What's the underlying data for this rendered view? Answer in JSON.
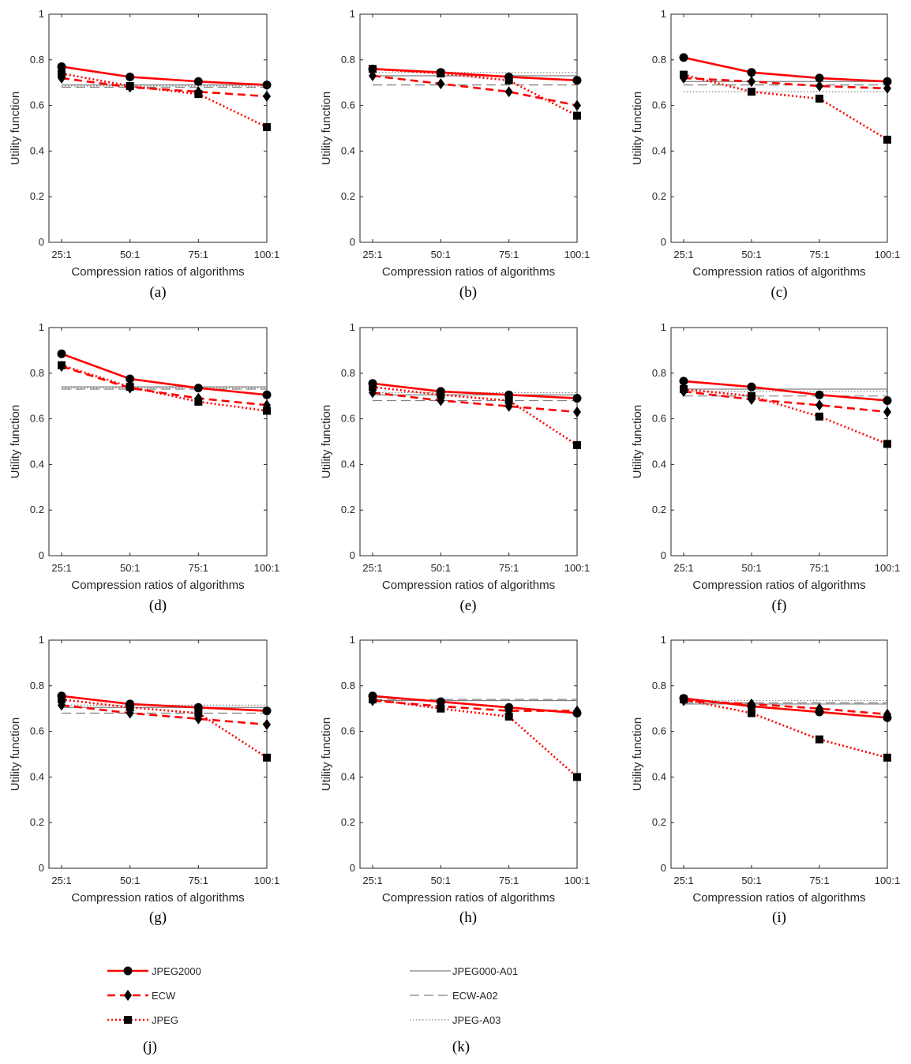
{
  "figure": {
    "categories": [
      "25:1",
      "50:1",
      "75:1",
      "100:1"
    ],
    "xlabel": "Compression ratios of algorithms",
    "ylabel": "Utility function",
    "yticks": [
      "0",
      "0.2",
      "0.4",
      "0.6",
      "0.8",
      "1"
    ]
  },
  "series_styles": [
    {
      "key": "JPEG2000",
      "color": "#ff0000",
      "marker": "circle",
      "dash": "solid"
    },
    {
      "key": "ECW",
      "color": "#ff0000",
      "marker": "diamond",
      "dash": "dashed"
    },
    {
      "key": "JPEG",
      "color": "#ff0000",
      "marker": "square",
      "dash": "dotted"
    },
    {
      "key": "JPEG000-A01",
      "color": "#808080",
      "dash": "solid"
    },
    {
      "key": "ECW-A02",
      "color": "#808080",
      "dash": "dashed"
    },
    {
      "key": "JPEG-A03",
      "color": "#808080",
      "dash": "dotted"
    }
  ],
  "chart_data": [
    {
      "type": "line",
      "label": "(a)",
      "ylim": [
        0,
        1
      ],
      "series": [
        {
          "name": "JPEG2000",
          "values": [
            0.77,
            0.725,
            0.705,
            0.69
          ]
        },
        {
          "name": "ECW",
          "values": [
            0.72,
            0.68,
            0.66,
            0.64
          ]
        },
        {
          "name": "JPEG",
          "values": [
            0.74,
            0.685,
            0.65,
            0.505
          ]
        },
        {
          "name": "JPEG000-A01",
          "values": [
            0.69,
            0.69,
            0.69,
            0.69
          ]
        },
        {
          "name": "ECW-A02",
          "values": [
            0.68,
            0.68,
            0.68,
            0.68
          ]
        },
        {
          "name": "JPEG-A03",
          "values": [
            0.685,
            0.685,
            0.685,
            0.685
          ]
        }
      ]
    },
    {
      "type": "line",
      "label": "(b)",
      "ylim": [
        0,
        1
      ],
      "series": [
        {
          "name": "JPEG2000",
          "values": [
            0.76,
            0.745,
            0.725,
            0.71
          ]
        },
        {
          "name": "ECW",
          "values": [
            0.73,
            0.695,
            0.66,
            0.6
          ]
        },
        {
          "name": "JPEG",
          "values": [
            0.76,
            0.74,
            0.71,
            0.555
          ]
        },
        {
          "name": "JPEG000-A01",
          "values": [
            0.73,
            0.73,
            0.73,
            0.73
          ]
        },
        {
          "name": "ECW-A02",
          "values": [
            0.69,
            0.69,
            0.69,
            0.69
          ]
        },
        {
          "name": "JPEG-A03",
          "values": [
            0.745,
            0.745,
            0.745,
            0.745
          ]
        }
      ]
    },
    {
      "type": "line",
      "label": "(c)",
      "ylim": [
        0,
        1
      ],
      "series": [
        {
          "name": "JPEG2000",
          "values": [
            0.81,
            0.745,
            0.72,
            0.705
          ]
        },
        {
          "name": "ECW",
          "values": [
            0.72,
            0.705,
            0.685,
            0.675
          ]
        },
        {
          "name": "JPEG",
          "values": [
            0.735,
            0.66,
            0.63,
            0.45
          ]
        },
        {
          "name": "JPEG000-A01",
          "values": [
            0.705,
            0.705,
            0.705,
            0.705
          ]
        },
        {
          "name": "ECW-A02",
          "values": [
            0.69,
            0.69,
            0.69,
            0.69
          ]
        },
        {
          "name": "JPEG-A03",
          "values": [
            0.66,
            0.66,
            0.66,
            0.66
          ]
        }
      ]
    },
    {
      "type": "line",
      "label": "(d)",
      "ylim": [
        0,
        1
      ],
      "series": [
        {
          "name": "JPEG2000",
          "values": [
            0.885,
            0.775,
            0.735,
            0.705
          ]
        },
        {
          "name": "ECW",
          "values": [
            0.83,
            0.735,
            0.69,
            0.66
          ]
        },
        {
          "name": "JPEG",
          "values": [
            0.835,
            0.74,
            0.675,
            0.635
          ]
        },
        {
          "name": "JPEG000-A01",
          "values": [
            0.74,
            0.74,
            0.74,
            0.74
          ]
        },
        {
          "name": "ECW-A02",
          "values": [
            0.73,
            0.73,
            0.73,
            0.73
          ]
        },
        {
          "name": "JPEG-A03",
          "values": [
            0.735,
            0.735,
            0.735,
            0.735
          ]
        }
      ]
    },
    {
      "type": "line",
      "label": "(e)",
      "ylim": [
        0,
        1
      ],
      "series": [
        {
          "name": "JPEG2000",
          "values": [
            0.755,
            0.72,
            0.705,
            0.69
          ]
        },
        {
          "name": "ECW",
          "values": [
            0.715,
            0.68,
            0.655,
            0.63
          ]
        },
        {
          "name": "JPEG",
          "values": [
            0.74,
            0.705,
            0.68,
            0.485
          ]
        },
        {
          "name": "JPEG000-A01",
          "values": [
            0.705,
            0.705,
            0.705,
            0.705
          ]
        },
        {
          "name": "ECW-A02",
          "values": [
            0.68,
            0.68,
            0.68,
            0.68
          ]
        },
        {
          "name": "JPEG-A03",
          "values": [
            0.715,
            0.715,
            0.715,
            0.715
          ]
        }
      ]
    },
    {
      "type": "line",
      "label": "(f)",
      "ylim": [
        0,
        1
      ],
      "series": [
        {
          "name": "JPEG2000",
          "values": [
            0.765,
            0.74,
            0.705,
            0.68
          ]
        },
        {
          "name": "ECW",
          "values": [
            0.72,
            0.685,
            0.66,
            0.63
          ]
        },
        {
          "name": "JPEG",
          "values": [
            0.73,
            0.7,
            0.61,
            0.49
          ]
        },
        {
          "name": "JPEG000-A01",
          "values": [
            0.73,
            0.73,
            0.73,
            0.73
          ]
        },
        {
          "name": "ECW-A02",
          "values": [
            0.7,
            0.7,
            0.7,
            0.7
          ]
        },
        {
          "name": "JPEG-A03",
          "values": [
            0.72,
            0.72,
            0.72,
            0.72
          ]
        }
      ]
    },
    {
      "type": "line",
      "label": "(g)",
      "ylim": [
        0,
        1
      ],
      "series": [
        {
          "name": "JPEG2000",
          "values": [
            0.755,
            0.72,
            0.705,
            0.69
          ]
        },
        {
          "name": "ECW",
          "values": [
            0.715,
            0.68,
            0.655,
            0.63
          ]
        },
        {
          "name": "JPEG",
          "values": [
            0.74,
            0.705,
            0.68,
            0.485
          ]
        },
        {
          "name": "JPEG000-A01",
          "values": [
            0.705,
            0.705,
            0.705,
            0.705
          ]
        },
        {
          "name": "ECW-A02",
          "values": [
            0.68,
            0.68,
            0.68,
            0.68
          ]
        },
        {
          "name": "JPEG-A03",
          "values": [
            0.715,
            0.715,
            0.715,
            0.715
          ]
        }
      ]
    },
    {
      "type": "line",
      "label": "(h)",
      "ylim": [
        0,
        1
      ],
      "series": [
        {
          "name": "JPEG2000",
          "values": [
            0.755,
            0.73,
            0.705,
            0.68
          ]
        },
        {
          "name": "ECW",
          "values": [
            0.735,
            0.71,
            0.69,
            0.69
          ]
        },
        {
          "name": "JPEG",
          "values": [
            0.74,
            0.7,
            0.665,
            0.4
          ]
        },
        {
          "name": "JPEG000-A01",
          "values": [
            0.735,
            0.735,
            0.735,
            0.735
          ]
        },
        {
          "name": "ECW-A02",
          "values": [
            0.74,
            0.74,
            0.74,
            0.74
          ]
        },
        {
          "name": "JPEG-A03",
          "values": [
            0.735,
            0.735,
            0.735,
            0.735
          ]
        }
      ]
    },
    {
      "type": "line",
      "label": "(i)",
      "ylim": [
        0,
        1
      ],
      "series": [
        {
          "name": "JPEG2000",
          "values": [
            0.745,
            0.71,
            0.685,
            0.66
          ]
        },
        {
          "name": "ECW",
          "values": [
            0.735,
            0.72,
            0.7,
            0.675
          ]
        },
        {
          "name": "JPEG",
          "values": [
            0.74,
            0.68,
            0.565,
            0.485
          ]
        },
        {
          "name": "JPEG000-A01",
          "values": [
            0.72,
            0.72,
            0.72,
            0.72
          ]
        },
        {
          "name": "ECW-A02",
          "values": [
            0.725,
            0.725,
            0.725,
            0.725
          ]
        },
        {
          "name": "JPEG-A03",
          "values": [
            0.735,
            0.735,
            0.735,
            0.735
          ]
        }
      ]
    }
  ],
  "legend": {
    "left": {
      "items": [
        "JPEG2000",
        "ECW",
        "JPEG"
      ],
      "label": "(j)"
    },
    "right": {
      "items": [
        "JPEG000-A01",
        "ECW-A02",
        "JPEG-A03"
      ],
      "label": "(k)"
    }
  }
}
